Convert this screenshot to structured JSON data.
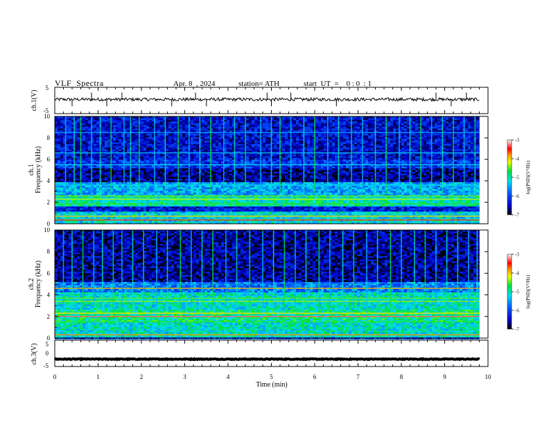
{
  "header": {
    "title": "VLF  Spectra",
    "date": "Apr. 8  , 2024",
    "station": "station= ATH",
    "start": "start  UT  =    0 : 0  : 1"
  },
  "colorbar_ticks": [
    "-3",
    "-4",
    "-5",
    "-6",
    "-7"
  ],
  "colorbar_label": "log(PSD)(V²/Hz)",
  "chart_data": [
    {
      "type": "line",
      "name": "ch1-waveform",
      "ylabel": "ch.1(V)",
      "ylim": [
        -5,
        5
      ],
      "yticks": [
        "5",
        "-5"
      ],
      "xlim": [
        0,
        10
      ],
      "baseline": 0.4,
      "noise_amplitude": 0.6,
      "spike_times_min": [
        0.4,
        0.85,
        1.2,
        1.55,
        2.7,
        3.25,
        3.5,
        4.9,
        5.0,
        5.45,
        6.5,
        8.8,
        9.15,
        9.5
      ]
    },
    {
      "type": "heatmap",
      "name": "ch1-spectrogram",
      "ylabel": "ch.1\nFrequency (kHz)",
      "ylim": [
        0,
        10
      ],
      "yticks": [
        "10",
        "8",
        "6",
        "4",
        "2",
        "0"
      ],
      "xlim": [
        0,
        10
      ],
      "time_end_min": 9.8,
      "zlim": [
        -7,
        -3
      ],
      "background_bands": [
        {
          "f_low": 0,
          "f_high": 1.2,
          "log_psd": -5.2
        },
        {
          "f_low": 1.2,
          "f_high": 1.6,
          "log_psd": -6.3
        },
        {
          "f_low": 1.6,
          "f_high": 2.6,
          "log_psd": -5.0
        },
        {
          "f_low": 2.6,
          "f_high": 3.8,
          "log_psd": -5.5
        },
        {
          "f_low": 3.8,
          "f_high": 5.2,
          "log_psd": -6.6
        },
        {
          "f_low": 5.2,
          "f_high": 6.0,
          "log_psd": -6.1
        },
        {
          "f_low": 6.0,
          "f_high": 10,
          "log_psd": -6.4
        }
      ],
      "emission_lines": [
        {
          "f": 0.35,
          "log_psd": -3.6
        },
        {
          "f": 0.7,
          "log_psd": -4.0
        },
        {
          "f": 1.85,
          "log_psd": -4.6
        },
        {
          "f": 2.3,
          "log_psd": -4.3
        },
        {
          "f": 2.6,
          "log_psd": -4.5
        },
        {
          "f": 3.6,
          "log_psd": -5.2
        },
        {
          "f": 5.5,
          "log_psd": -5.3
        },
        {
          "f": 6.6,
          "log_psd": -5.4
        },
        {
          "f": 8.5,
          "log_psd": -5.6
        }
      ],
      "sferic_times_min": [
        0.25,
        0.45,
        0.6,
        0.85,
        1.05,
        1.3,
        1.6,
        1.75,
        1.95,
        2.3,
        2.55,
        2.85,
        3.1,
        3.35,
        3.6,
        3.9,
        4.15,
        4.4,
        4.75,
        5.0,
        5.2,
        5.45,
        5.75,
        6.0,
        6.3,
        6.55,
        6.85,
        7.1,
        7.4,
        7.65,
        7.95,
        8.2,
        8.45,
        8.7,
        8.95,
        9.2,
        9.45,
        9.7
      ]
    },
    {
      "type": "heatmap",
      "name": "ch2-spectrogram",
      "ylabel": "ch.2\nFrequency (kHz)",
      "ylim": [
        0,
        10
      ],
      "yticks": [
        "10",
        "8",
        "6",
        "4",
        "2",
        "0"
      ],
      "xlim": [
        0,
        10
      ],
      "time_end_min": 9.8,
      "zlim": [
        -7,
        -3
      ],
      "background_bands": [
        {
          "f_low": 0,
          "f_high": 1.5,
          "log_psd": -5.1
        },
        {
          "f_low": 1.5,
          "f_high": 2.6,
          "log_psd": -4.9
        },
        {
          "f_low": 2.6,
          "f_high": 4.2,
          "log_psd": -5.1
        },
        {
          "f_low": 4.2,
          "f_high": 5.2,
          "log_psd": -5.7
        },
        {
          "f_low": 5.2,
          "f_high": 10,
          "log_psd": -6.6
        }
      ],
      "emission_lines": [
        {
          "f": 0.3,
          "log_psd": -3.8
        },
        {
          "f": 1.5,
          "log_psd": -4.6
        },
        {
          "f": 2.0,
          "log_psd": -3.3
        },
        {
          "f": 2.3,
          "log_psd": -4.1
        },
        {
          "f": 3.4,
          "log_psd": -4.4
        },
        {
          "f": 3.7,
          "log_psd": -4.5
        },
        {
          "f": 4.6,
          "log_psd": -3.9
        }
      ],
      "sferic_times_min": [
        0.2,
        0.4,
        0.65,
        0.9,
        1.1,
        1.35,
        1.55,
        1.8,
        2.05,
        2.35,
        2.6,
        2.9,
        3.15,
        3.4,
        3.65,
        3.95,
        4.2,
        4.5,
        4.8,
        5.05,
        5.3,
        5.55,
        5.8,
        6.1,
        6.35,
        6.65,
        6.9,
        7.2,
        7.45,
        7.75,
        8.0,
        8.3,
        8.55,
        8.8,
        9.05,
        9.3,
        9.55,
        9.75
      ]
    },
    {
      "type": "line",
      "name": "ch3-waveform",
      "ylabel": "ch.3(V)",
      "ylim": [
        -5,
        5
      ],
      "yticks": [
        "5",
        "0",
        "-5"
      ],
      "xlim": [
        0,
        10
      ],
      "xticks": [
        "0",
        "1",
        "2",
        "3",
        "4",
        "5",
        "6",
        "7",
        "8",
        "9",
        "10"
      ],
      "xlabel": "Time  (min)",
      "baseline": -2.2,
      "noise_amplitude": 0.15
    }
  ]
}
